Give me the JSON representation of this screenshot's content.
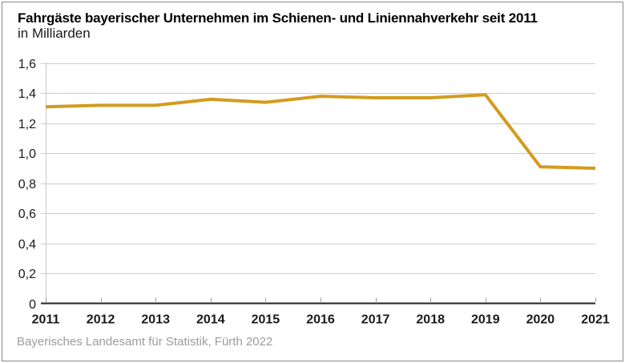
{
  "header": {
    "title": "Fahrgäste bayerischer Unternehmen im Schienen- und Liniennahverkehr seit 2011",
    "subtitle": "in Milliarden"
  },
  "footer": {
    "source": "Bayerisches Landesamt für Statistik, Fürth 2022"
  },
  "chart_data": {
    "type": "line",
    "title": "Fahrgäste bayerischer Unternehmen im Schienen- und Liniennahverkehr seit 2011",
    "subtitle": "in Milliarden",
    "x": [
      2011,
      2012,
      2013,
      2014,
      2015,
      2016,
      2017,
      2018,
      2019,
      2020,
      2021
    ],
    "series": [
      {
        "name": "Fahrgäste in Milliarden",
        "values": [
          1.31,
          1.32,
          1.32,
          1.36,
          1.34,
          1.38,
          1.37,
          1.37,
          1.39,
          0.91,
          0.9
        ]
      }
    ],
    "xlabel": "",
    "ylabel": "",
    "ylim": [
      0,
      1.6
    ],
    "ytick_values": [
      0,
      0.2,
      0.4,
      0.6,
      0.8,
      1.0,
      1.2,
      1.4,
      1.6
    ],
    "ytick_labels": [
      "0",
      "0,2",
      "0,4",
      "0,6",
      "0,8",
      "1,0",
      "1,2",
      "1,4",
      "1,6"
    ],
    "grid": true,
    "legend_position": "none",
    "colors": {
      "line": "#d39b1e",
      "grid": "#cccccc",
      "y_axis": "#c6c6c6",
      "x_axis": "#2b2b2b",
      "tick": "#9a9a9a",
      "label": "#1a1a1a"
    }
  }
}
